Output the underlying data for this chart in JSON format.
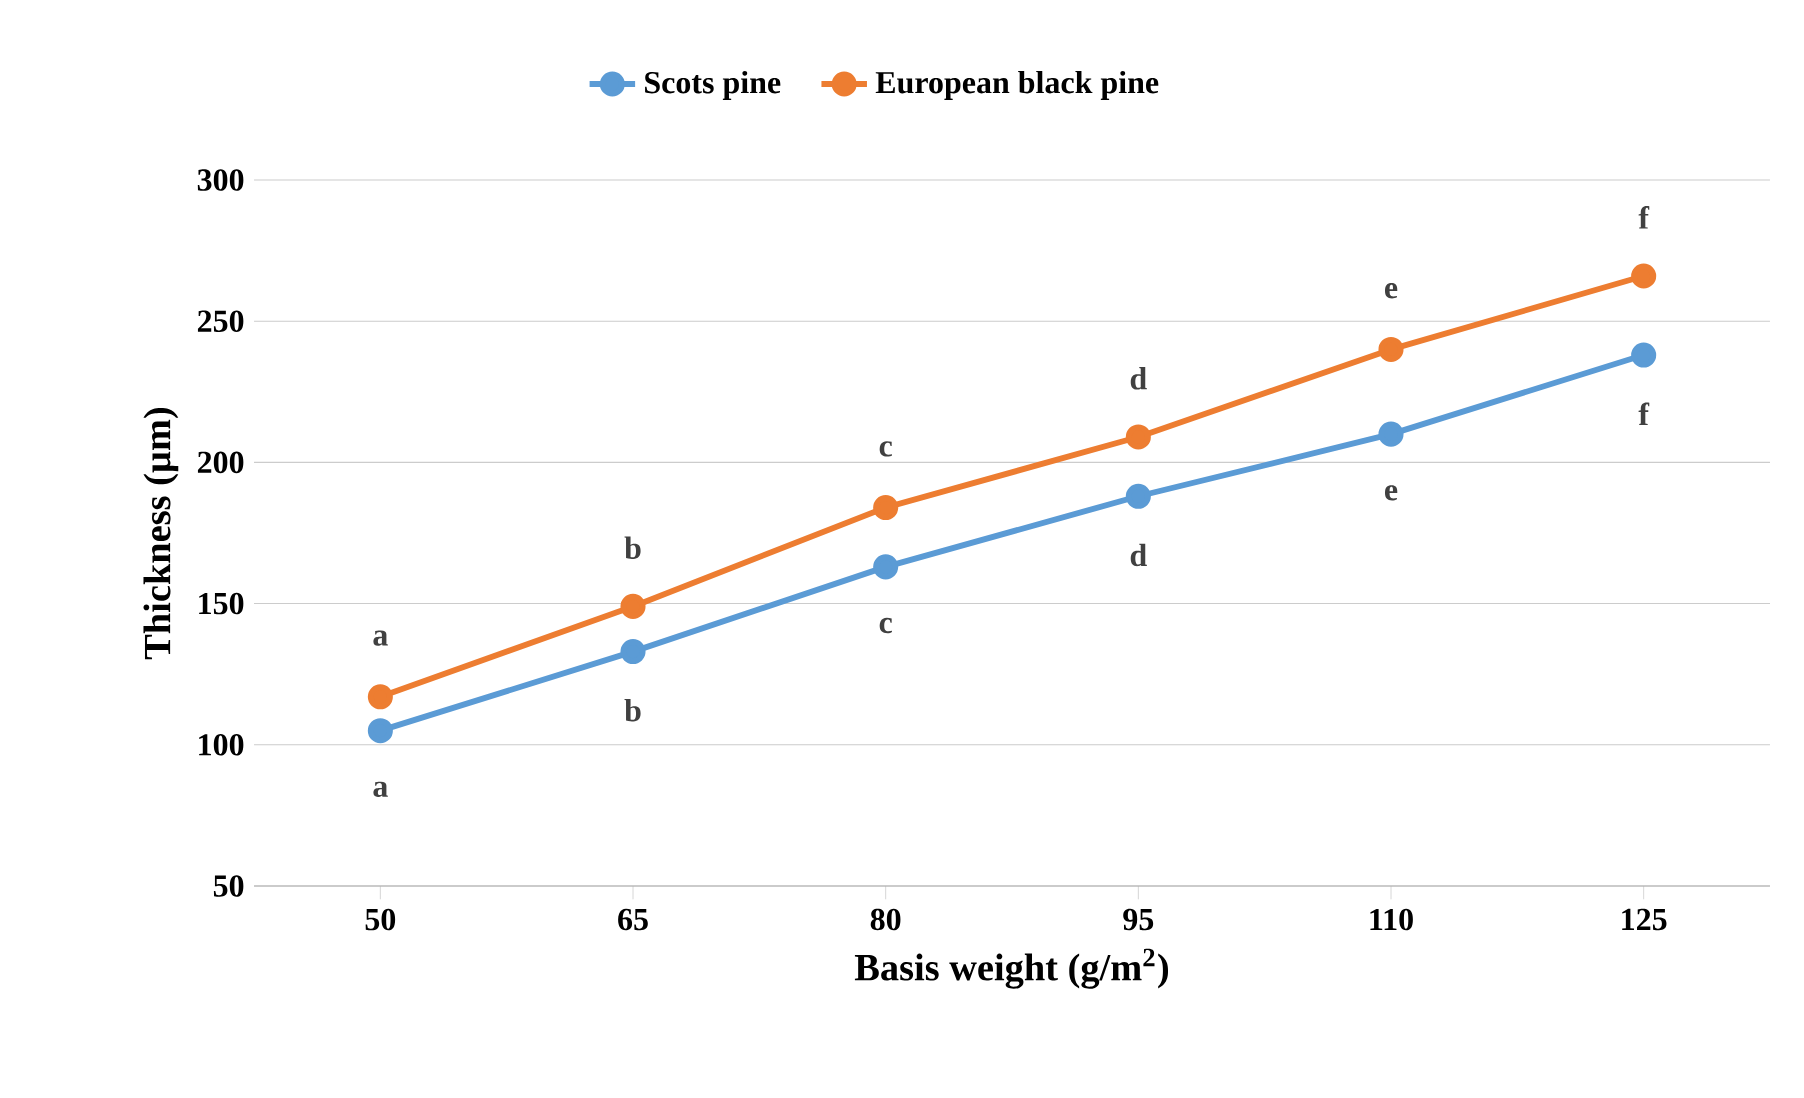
{
  "chart_data": {
    "type": "line",
    "xlabel": "Basis weight (g/m$^{2}$)",
    "ylabel": "Thickness (µm)",
    "categories": [
      "50",
      "65",
      "80",
      "95",
      "110",
      "125"
    ],
    "series": [
      {
        "name": "Scots pine",
        "color": "#5b9bd5",
        "values": [
          105,
          133,
          163,
          188,
          210,
          238
        ]
      },
      {
        "name": "European black pine",
        "color": "#ed7d31",
        "values": [
          117,
          149,
          184,
          209,
          240,
          266
        ]
      }
    ],
    "ylim": [
      50,
      300
    ],
    "yticks": [
      50,
      100,
      150,
      200,
      250,
      300
    ],
    "grid": "y",
    "legend": "top",
    "marker": "circle",
    "line_style": "solid",
    "annotations": [
      {
        "text": "a",
        "x": "50",
        "y": 105
      },
      {
        "text": "b",
        "x": "65",
        "y": 133
      },
      {
        "text": "c",
        "x": "80",
        "y": 163
      },
      {
        "text": "d",
        "x": "95",
        "y": 188
      },
      {
        "text": "e",
        "x": "110",
        "y": 210
      },
      {
        "text": "f",
        "x": "125",
        "y": 238
      },
      {
        "text": "a",
        "x": "50",
        "y": 117
      },
      {
        "text": "b",
        "x": "65",
        "y": 149
      },
      {
        "text": "c",
        "x": "80",
        "y": 184
      },
      {
        "text": "d",
        "x": "95",
        "y": 209
      },
      {
        "text": "e",
        "x": "110",
        "y": 240
      },
      {
        "text": "f",
        "x": "125",
        "y": 266
      }
    ]
  }
}
